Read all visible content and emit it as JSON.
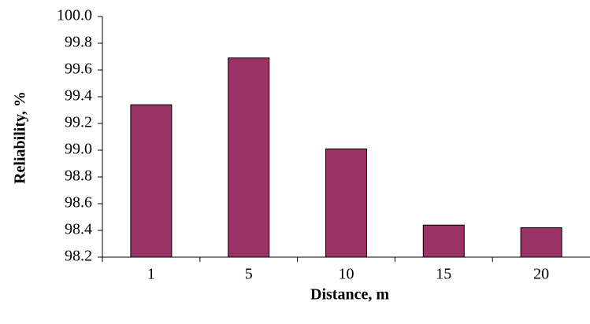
{
  "chart_data": {
    "type": "bar",
    "title": "",
    "xlabel": "Distance, m",
    "ylabel": "Reliability, %",
    "categories": [
      "1",
      "5",
      "10",
      "15",
      "20"
    ],
    "values": [
      99.34,
      99.69,
      99.01,
      98.44,
      98.42
    ],
    "ylim": [
      98.2,
      100.0
    ],
    "yticks": [
      "98.2",
      "98.4",
      "98.6",
      "98.8",
      "99.0",
      "99.2",
      "99.4",
      "99.6",
      "99.8",
      "100.0"
    ],
    "grid": false,
    "legend": "none",
    "colors": {
      "bar_fill": "#993366",
      "bar_stroke": "#000000",
      "axis": "#000000"
    }
  }
}
